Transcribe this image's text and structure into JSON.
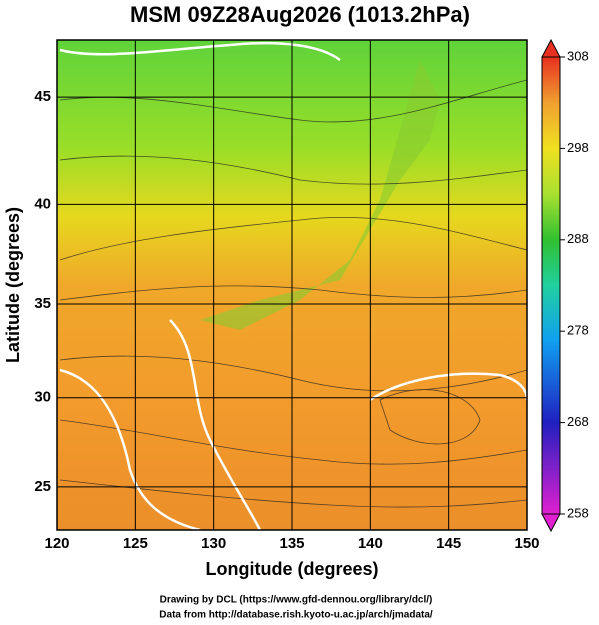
{
  "chart_data": {
    "type": "map",
    "title": "MSM 09Z28Aug2026 (1013.2hPa)",
    "xlabel": "Longitude (degrees)",
    "ylabel": "Latitude  (degrees)",
    "projection": "mercator",
    "xlim": [
      120,
      150
    ],
    "ylim": [
      22.5,
      47.5
    ],
    "xticks": [
      120,
      125,
      130,
      135,
      140,
      145,
      150
    ],
    "yticks": [
      25,
      30,
      35,
      40,
      45
    ],
    "grid": true,
    "colorbar": {
      "lim": [
        258,
        308
      ],
      "ticks": [
        258,
        268,
        278,
        288,
        298,
        308
      ]
    }
  },
  "credits": [
    "Drawing by DCL (https://www.gfd-dennou.org/library/dcl/)",
    "Data from http://database.rish.kyoto-u.ac.jp/arch/jmadata/"
  ]
}
